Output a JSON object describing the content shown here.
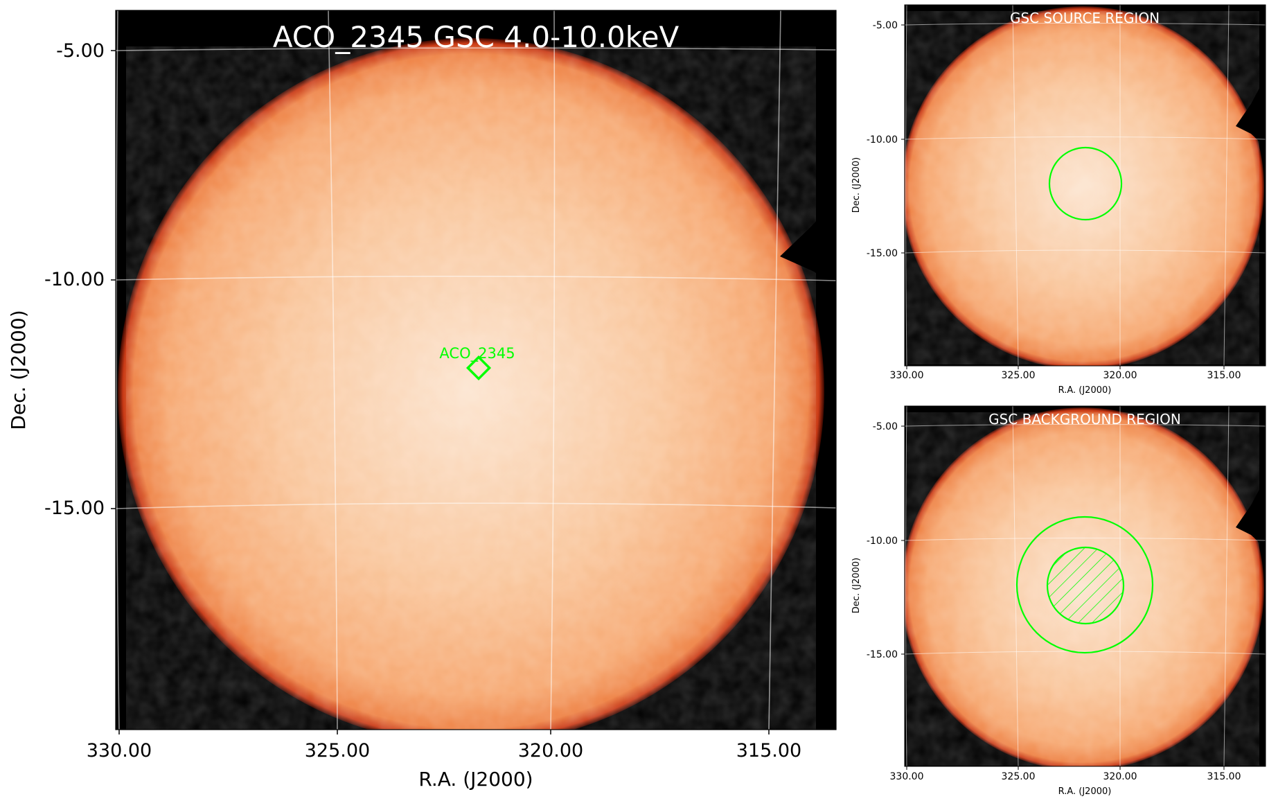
{
  "colors": {
    "background": "#000000",
    "disk_center": "#fce4cf",
    "disk_mid": "#f9bb8c",
    "disk_edge": "#f08a4b",
    "rim": "#b8240c",
    "grid": "#ffffff",
    "region": "#00ff00",
    "title": "#ffffff"
  },
  "chart_data": [
    {
      "type": "heatmap",
      "title": "ACO_2345 GSC 4.0-10.0keV",
      "xlabel": "R.A. (J2000)",
      "ylabel": "Dec. (J2000)",
      "xlim": [
        330.0,
        313.4
      ],
      "ylim": [
        -20.0,
        -4.2
      ],
      "x_ticks": [
        "330.00",
        "325.00",
        "320.00",
        "315.00"
      ],
      "y_ticks": [
        "-5.00",
        "-10.00",
        "-15.00"
      ],
      "grid": true,
      "source": {
        "name": "ACO_2345",
        "ra": 321.6,
        "dec": -12.0,
        "marker": "diamond"
      }
    },
    {
      "type": "heatmap",
      "title": "GSC SOURCE REGION",
      "xlabel": "R.A. (J2000)",
      "ylabel": "Dec. (J2000)",
      "xlim": [
        330.0,
        313.4
      ],
      "ylim": [
        -20.0,
        -4.2
      ],
      "x_ticks": [
        "330.00",
        "325.00",
        "320.00",
        "315.00"
      ],
      "y_ticks": [
        "-5.00",
        "-10.00",
        "-15.00"
      ],
      "grid": true,
      "regions": [
        {
          "shape": "circle",
          "ra": 321.6,
          "dec": -12.0,
          "radius_deg": 1.6
        }
      ]
    },
    {
      "type": "heatmap",
      "title": "GSC BACKGROUND REGION",
      "xlabel": "R.A. (J2000)",
      "ylabel": "Dec. (J2000)",
      "xlim": [
        330.0,
        313.4
      ],
      "ylim": [
        -20.0,
        -4.2
      ],
      "x_ticks": [
        "330.00",
        "325.00",
        "320.00",
        "315.00"
      ],
      "y_ticks": [
        "-5.00",
        "-10.00",
        "-15.00"
      ],
      "grid": true,
      "regions": [
        {
          "shape": "circle",
          "ra": 321.6,
          "dec": -12.0,
          "radius_deg": 3.0
        },
        {
          "shape": "circle",
          "ra": 321.6,
          "dec": -12.0,
          "radius_deg": 1.7,
          "excluded": true
        }
      ]
    }
  ]
}
